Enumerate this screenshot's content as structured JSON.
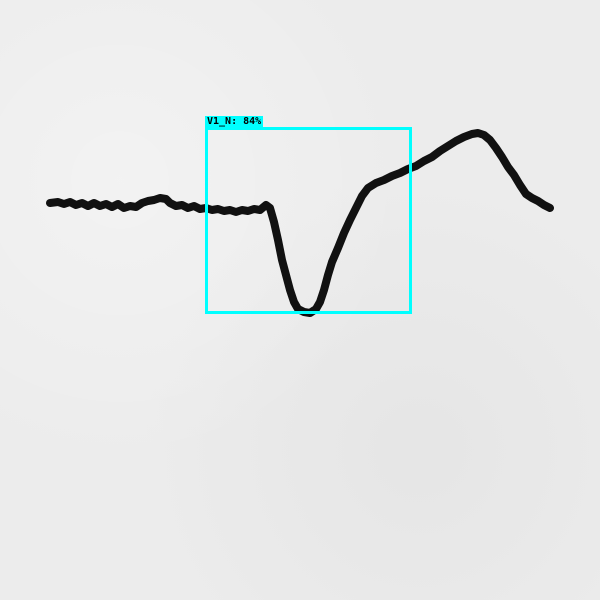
{
  "detection": {
    "label": "V1_N: 84%",
    "color": "#00ffff"
  },
  "trace": {
    "color": "#111111"
  }
}
